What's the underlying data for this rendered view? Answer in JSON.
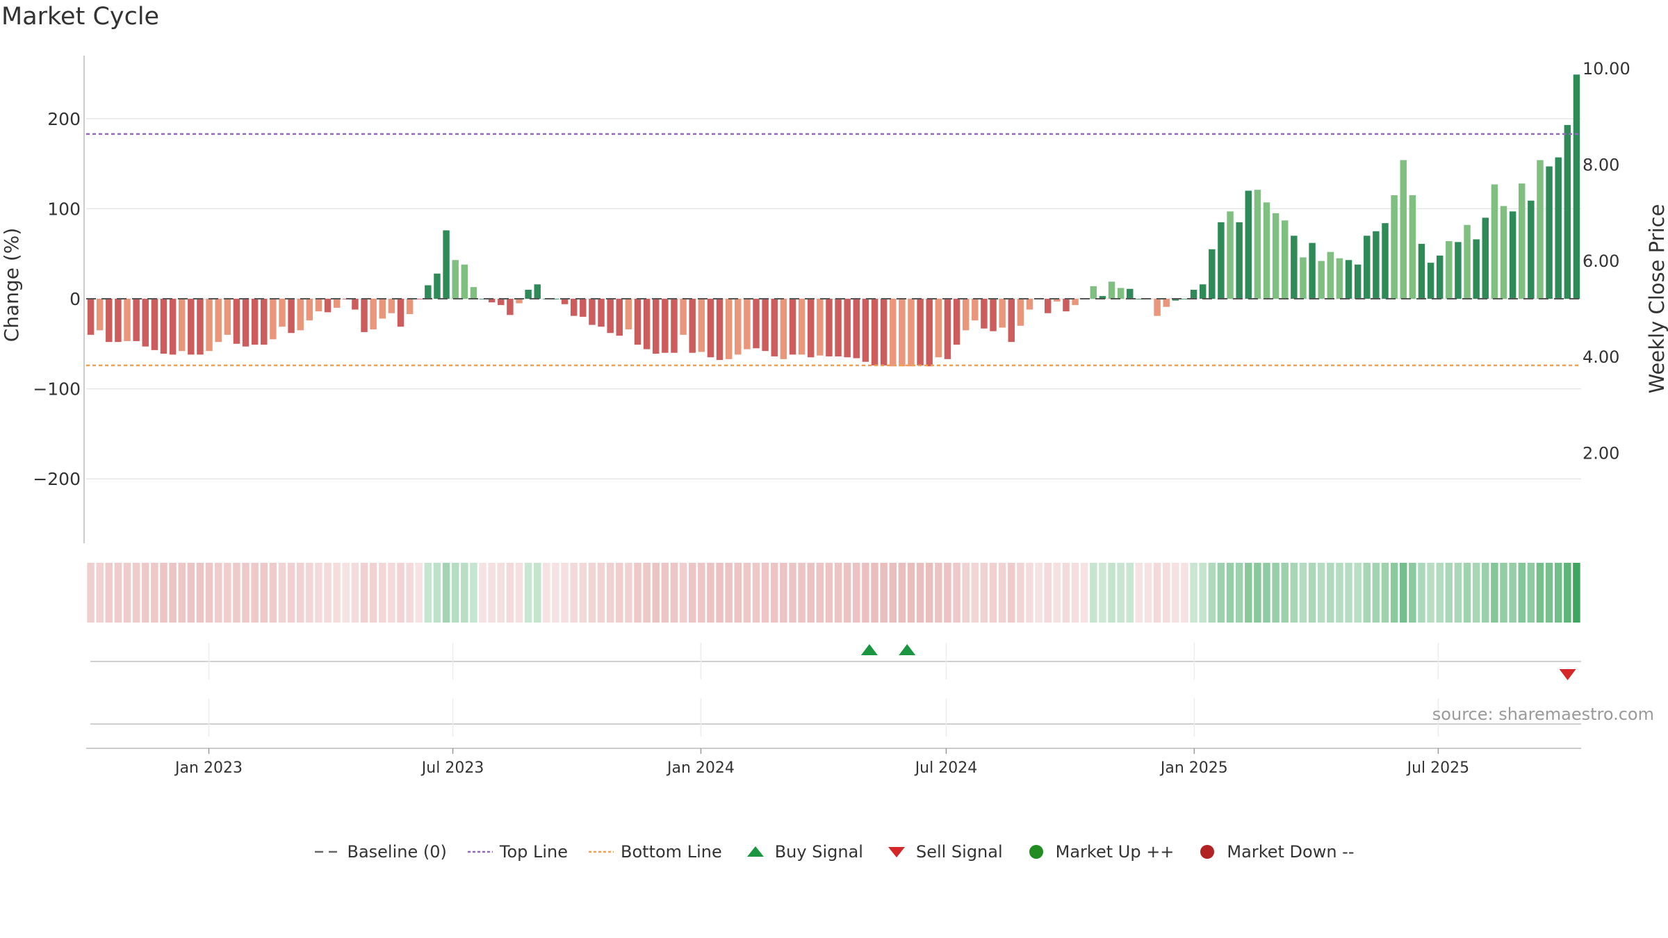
{
  "chart_data": {
    "type": "bar",
    "title": "Market Cycle",
    "ylabel": "Change (%)",
    "y2label": "Weekly Close Price",
    "ylim": [
      -270,
      270
    ],
    "y2lim": [
      0.0,
      10.0
    ],
    "yticks": [
      200,
      100,
      0,
      -100,
      -200
    ],
    "ytick_labels": [
      "200",
      "100",
      "0",
      "−100",
      "−200"
    ],
    "y2ticks": [
      10,
      8,
      6,
      4,
      2
    ],
    "y2tick_labels": [
      "10.00",
      "8.00",
      "6.00",
      "4.00",
      "2.00"
    ],
    "x_start": "2022-10-02",
    "x_end": "2025-10-15",
    "x_ticks": [
      "2023-01-01",
      "2023-07-01",
      "2024-01-01",
      "2024-07-01",
      "2025-01-01",
      "2025-07-01"
    ],
    "x_tick_labels": [
      "Jan 2023",
      "Jul 2023",
      "Jan 2024",
      "Jul 2024",
      "Jan 2025",
      "Jul 2025"
    ],
    "top_line": 183,
    "bottom_line": -74,
    "baseline": 0,
    "colors": {
      "strong_up": "#2e8b57",
      "weak_up": "#7fbf7f",
      "strong_down": "#cd5c5c",
      "weak_down": "#e9967a",
      "top_line": "#9467bd",
      "bottom_line": "#f0a050",
      "baseline": "#555555",
      "buy": "#1a9641",
      "sell": "#d62728",
      "market_up": "#228b22",
      "market_down": "#b22222"
    },
    "weekly_changes": [
      -40,
      -35,
      -48,
      -48,
      -47,
      -47,
      -53,
      -57,
      -61,
      -62,
      -58,
      -62,
      -62,
      -58,
      -48,
      -40,
      -50,
      -53,
      -51,
      -51,
      -45,
      -31,
      -38,
      -35,
      -24,
      -14,
      -15,
      -10,
      0,
      -12,
      -37,
      -34,
      -22,
      -16,
      -31,
      -17,
      0,
      15,
      28,
      76,
      43,
      38,
      13,
      0,
      -4,
      -7,
      -18,
      -5,
      10,
      16,
      0,
      0,
      -6,
      -19,
      -20,
      -29,
      -31,
      -38,
      -41,
      -34,
      -51,
      -56,
      -61,
      -60,
      -60,
      -40,
      -60,
      -59,
      -65,
      -68,
      -67,
      -62,
      -56,
      -55,
      -58,
      -64,
      -67,
      -62,
      -62,
      -65,
      -63,
      -64,
      -64,
      -65,
      -66,
      -70,
      -74,
      -74,
      -75,
      -75,
      -75,
      -74,
      -75,
      -65,
      -67,
      -51,
      -35,
      -24,
      -33,
      -36,
      -32,
      -48,
      -30,
      -12,
      0,
      -16,
      -3,
      -14,
      -7,
      0,
      14,
      3,
      19,
      12,
      11,
      0,
      0,
      -19,
      -9,
      -2,
      0,
      10,
      16,
      55,
      85,
      97,
      85,
      120,
      121,
      107,
      95,
      87,
      70,
      46,
      62,
      42,
      52,
      45,
      43,
      38,
      70,
      75,
      84,
      115,
      154,
      115,
      61,
      40,
      48,
      64,
      63,
      82,
      66,
      90,
      127,
      103,
      97,
      128,
      109,
      154,
      147,
      157,
      193,
      249
    ],
    "bar_colors": [
      "sd",
      "wd",
      "sd",
      "sd",
      "wd",
      "sd",
      "sd",
      "sd",
      "sd",
      "sd",
      "wd",
      "sd",
      "sd",
      "wd",
      "wd",
      "wd",
      "sd",
      "sd",
      "sd",
      "sd",
      "wd",
      "wd",
      "sd",
      "wd",
      "wd",
      "wd",
      "sd",
      "wd",
      "sd",
      "sd",
      "sd",
      "wd",
      "wd",
      "wd",
      "sd",
      "wd",
      "sd",
      "su",
      "su",
      "su",
      "wu",
      "wu",
      "wu",
      "su",
      "sd",
      "sd",
      "sd",
      "wd",
      "su",
      "su",
      "su",
      "su",
      "sd",
      "sd",
      "sd",
      "sd",
      "sd",
      "sd",
      "sd",
      "wd",
      "sd",
      "sd",
      "sd",
      "sd",
      "sd",
      "wd",
      "sd",
      "wd",
      "sd",
      "sd",
      "wd",
      "wd",
      "wd",
      "sd",
      "sd",
      "sd",
      "wd",
      "sd",
      "wd",
      "sd",
      "wd",
      "sd",
      "sd",
      "sd",
      "sd",
      "sd",
      "sd",
      "sd",
      "wd",
      "wd",
      "wd",
      "sd",
      "sd",
      "wd",
      "sd",
      "sd",
      "wd",
      "wd",
      "sd",
      "sd",
      "wd",
      "sd",
      "wd",
      "wd",
      "sd",
      "sd",
      "wd",
      "sd",
      "wd",
      "su",
      "wu",
      "su",
      "wu",
      "wu",
      "su",
      "su",
      "sd",
      "wd",
      "wd",
      "su",
      "su",
      "su",
      "su",
      "su",
      "su",
      "wu",
      "su",
      "su",
      "wu",
      "wu",
      "wu",
      "wu",
      "su",
      "wu",
      "su",
      "wu",
      "wu",
      "wu",
      "su",
      "su",
      "su",
      "su",
      "su",
      "wu",
      "wu",
      "wu",
      "su",
      "su",
      "su",
      "wu",
      "su",
      "wu",
      "su",
      "su",
      "wu",
      "wu",
      "su",
      "wu",
      "su",
      "wu",
      "su",
      "su",
      "su",
      "su",
      "su"
    ],
    "heat_strip": [
      -40,
      -35,
      -48,
      -48,
      -47,
      -47,
      -53,
      -57,
      -61,
      -62,
      -58,
      -62,
      -62,
      -58,
      -48,
      -40,
      -50,
      -53,
      -51,
      -51,
      -45,
      -31,
      -38,
      -35,
      -24,
      -14,
      -15,
      -10,
      0,
      -12,
      -37,
      -34,
      -22,
      -16,
      -31,
      -17,
      0,
      15,
      28,
      76,
      43,
      38,
      13,
      0,
      -4,
      -7,
      -18,
      -5,
      10,
      16,
      0,
      0,
      -6,
      -19,
      -20,
      -29,
      -31,
      -38,
      -41,
      -34,
      -51,
      -56,
      -61,
      -60,
      -60,
      -40,
      -60,
      -59,
      -65,
      -68,
      -67,
      -62,
      -56,
      -55,
      -58,
      -64,
      -67,
      -62,
      -62,
      -65,
      -63,
      -64,
      -64,
      -65,
      -66,
      -70,
      -74,
      -74,
      -75,
      -75,
      -75,
      -74,
      -75,
      -65,
      -67,
      -51,
      -35,
      -24,
      -33,
      -36,
      -32,
      -48,
      -30,
      -12,
      0,
      -16,
      -3,
      -14,
      -7,
      0,
      14,
      3,
      19,
      12,
      11,
      0,
      0,
      -19,
      -9,
      -2,
      0,
      10,
      16,
      55,
      85,
      97,
      85,
      120,
      121,
      107,
      95,
      87,
      70,
      46,
      62,
      42,
      52,
      45,
      43,
      38,
      70,
      75,
      84,
      115,
      154,
      115,
      61,
      40,
      48,
      64,
      63,
      82,
      66,
      90,
      127,
      103,
      97,
      128,
      109,
      154,
      147,
      157,
      193,
      249
    ],
    "buy_signals": [
      "2024-05-05",
      "2024-06-02"
    ],
    "sell_signals": [
      "2025-10-05"
    ],
    "legend": [
      {
        "label": "Baseline (0)",
        "symbol": "dash",
        "color": "#666666"
      },
      {
        "label": "Top Line",
        "symbol": "dot",
        "color": "#9467bd"
      },
      {
        "label": "Bottom Line",
        "symbol": "dot",
        "color": "#f0a050"
      },
      {
        "label": "Buy Signal",
        "symbol": "tri-up",
        "color": "#1a9641"
      },
      {
        "label": "Sell Signal",
        "symbol": "tri-down",
        "color": "#d62728"
      },
      {
        "label": "Market Up ++",
        "symbol": "circle",
        "color": "#228b22"
      },
      {
        "label": "Market Down --",
        "symbol": "circle",
        "color": "#b22222"
      }
    ],
    "source": "source: sharemaestro.com"
  }
}
